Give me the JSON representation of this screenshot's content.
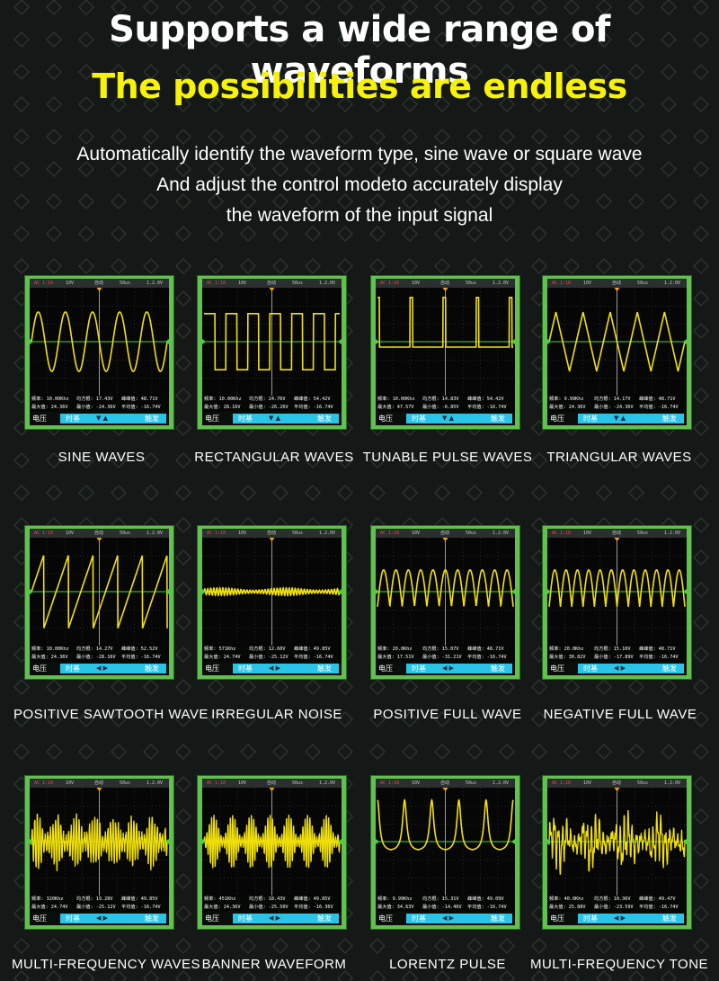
{
  "header": {
    "title": "Supports a wide range of waveforms",
    "subtitle": "The possibilities are endless",
    "description_lines": [
      "Automatically identify the waveform type, sine wave or square wave",
      "And adjust the control modeto accurately display",
      "the waveform of the input signal"
    ]
  },
  "colors": {
    "background": "#141816",
    "title": "#ffffff",
    "subtitle": "#f6f20a",
    "scope_frame": "#62c04f",
    "trace": "#f2e10a",
    "baseline": "#3fd83f",
    "control_bar": "#29c4e7"
  },
  "scope_ui": {
    "top_bar": [
      "AC 1:10",
      "10V",
      "自动",
      "50us",
      "1.2.0V"
    ],
    "control_voltage": "电压",
    "control_timebase": "时基",
    "control_trigger": "触发",
    "arrows_updown": "▼ ▲",
    "arrows_leftright": "◀ ▶"
  },
  "waveforms": [
    {
      "caption": "SINE WAVES",
      "type": "sine",
      "freq": "频率: 10.00Khz",
      "rms": "均方根: 17.43V",
      "pp": "峰峰值: 48.71V",
      "max": "最大值: 24.36V",
      "min": "最小值: -24.36V",
      "avg": "平均值: -16.74V"
    },
    {
      "caption": "RECTANGULAR WAVES",
      "type": "square",
      "freq": "频率: 10.00Khz",
      "rms": "均方根: 24.76V",
      "pp": "峰峰值: 54.42V",
      "max": "最大值: 28.16V",
      "min": "最小值: -26.26V",
      "avg": "平均值: -16.74V"
    },
    {
      "caption": "TUNABLE PULSE WAVES",
      "type": "pulse",
      "freq": "频率: 10.00Khz",
      "rms": "均方根: 14.83V",
      "pp": "峰峰值: 54.42V",
      "max": "最大值: 47.57V",
      "min": "最小值: -6.85V",
      "avg": "平均值: -16.74V"
    },
    {
      "caption": "TRIANGULAR WAVES",
      "type": "triangle",
      "freq": "频率: 9.99Khz",
      "rms": "均方根: 14.17V",
      "pp": "峰峰值: 48.71V",
      "max": "最大值: 24.36V",
      "min": "最小值: -24.36V",
      "avg": "平均值: -16.74V"
    },
    {
      "caption": "POSITIVE SAWTOOTH WAVE",
      "type": "sawtooth",
      "freq": "频率: 10.00Khz",
      "rms": "均方根: 14.27V",
      "pp": "峰峰值: 52.52V",
      "max": "最大值: 24.36V",
      "min": "最小值: -28.16V",
      "avg": "平均值: -16.74V"
    },
    {
      "caption": "IRREGULAR NOISE",
      "type": "noise",
      "freq": "频率: 571Khz",
      "rms": "均方根: 12.60V",
      "pp": "峰峰值: 49.85V",
      "max": "最大值: 24.74V",
      "min": "最小值: -25.12V",
      "avg": "平均值: -16.74V"
    },
    {
      "caption": "POSITIVE FULL WAVE",
      "type": "fullpos",
      "freq": "频率: 20.0Khz",
      "rms": "均方根: 15.07V",
      "pp": "峰峰值: 48.71V",
      "max": "最大值: 17.51V",
      "min": "最小值: -31.21V",
      "avg": "平均值: -16.74V"
    },
    {
      "caption": "NEGATIVE FULL WAVE",
      "type": "fullneg",
      "freq": "频率: 20.0Khz",
      "rms": "均方根: 15.10V",
      "pp": "峰峰值: 48.71V",
      "max": "最大值: 30.82V",
      "min": "最小值: -17.89V",
      "avg": "平均值: -16.74V"
    },
    {
      "caption": "MULTI-FREQUENCY WAVES",
      "type": "multi",
      "freq": "频率: 320Khz",
      "rms": "均方根: 19.28V",
      "pp": "峰峰值: 49.85V",
      "max": "最大值: 24.74V",
      "min": "最小值: -25.12V",
      "avg": "平均值: -16.74V"
    },
    {
      "caption": "BANNER WAVEFORM",
      "type": "banner",
      "freq": "频率: 451Khz",
      "rms": "均方根: 18.43V",
      "pp": "峰峰值: 49.85V",
      "max": "最大值: 24.36V",
      "min": "最小值: -25.50V",
      "avg": "平均值: -16.36V"
    },
    {
      "caption": "LORENTZ PULSE",
      "type": "lorentz",
      "freq": "频率: 9.99Khz",
      "rms": "均方根: 15.31V",
      "pp": "峰峰值: 49.09V",
      "max": "最大值: 34.63V",
      "min": "最小值: -14.46V",
      "avg": "平均值: -16.74V"
    },
    {
      "caption": "MULTI-FREQUENCY TONE",
      "type": "tone",
      "freq": "频率: 40.0Khz",
      "rms": "均方根: 10.36V",
      "pp": "峰峰值: 49.47V",
      "max": "最大值: 25.88V",
      "min": "最小值: -23.59V",
      "avg": "平均值: -16.74V"
    }
  ]
}
